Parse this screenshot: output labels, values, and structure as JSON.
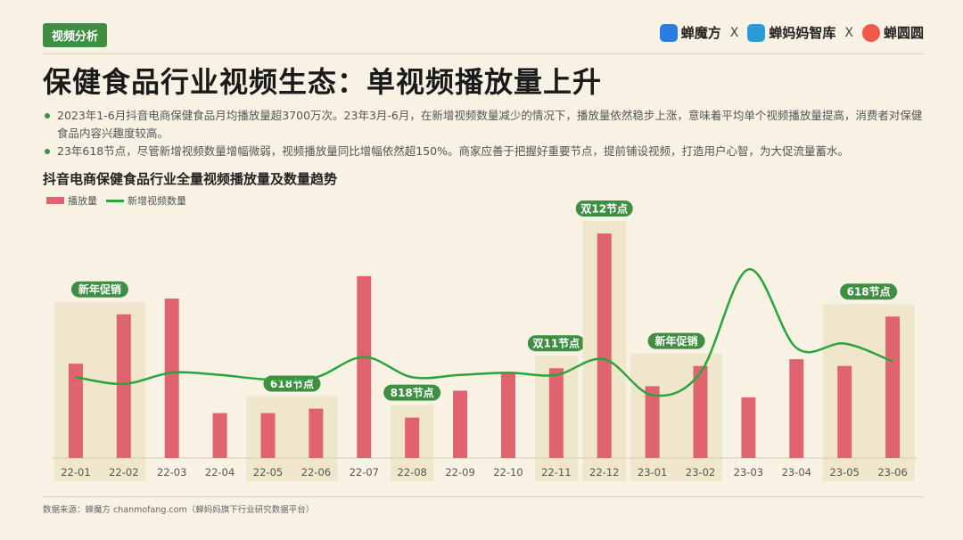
{
  "header": {
    "tag": "视频分析",
    "logos": [
      {
        "name": "蝉魔方",
        "color": "#2a7de1"
      },
      {
        "name": "蝉妈妈智库",
        "color": "#2a9bd9"
      },
      {
        "name": "蝉圆圆",
        "color": "#f0584a"
      }
    ],
    "separator": "X",
    "title": "保健食品行业视频生态：单视频播放量上升"
  },
  "bullets": [
    "2023年1-6月抖音电商保健食品月均播放量超3700万次。23年3月-6月，在新增视频数量减少的情况下，播放量依然稳步上涨，意味着平均单个视频播放量提高，消费者对保健食品内容兴趣度较高。",
    "23年618节点，尽管新增视频数量增幅微弱，视频播放量同比增幅依然超150%。商家应善于把握好重要节点，提前铺设视频，打造用户心智，为大促流量蓄水。"
  ],
  "chart_data": {
    "type": "bar",
    "title": "抖音电商保健食品行业全量视频播放量及数量趋势",
    "categories": [
      "22-01",
      "22-02",
      "22-03",
      "22-04",
      "22-05",
      "22-06",
      "22-07",
      "22-08",
      "22-09",
      "22-10",
      "22-11",
      "22-12",
      "23-01",
      "23-02",
      "23-03",
      "23-04",
      "23-05",
      "23-06"
    ],
    "series": [
      {
        "name": "播放量",
        "kind": "bar",
        "color": "#e06470",
        "values": [
          42,
          64,
          71,
          20,
          20,
          22,
          81,
          18,
          30,
          38,
          40,
          100,
          32,
          41,
          27,
          44,
          41,
          63
        ]
      },
      {
        "name": "新增视频数量",
        "kind": "line",
        "color": "#2aa43d",
        "values": [
          36,
          33,
          38,
          37,
          35,
          36,
          45,
          36,
          37,
          38,
          37,
          44,
          28,
          38,
          84,
          49,
          51,
          43
        ]
      }
    ],
    "ylim": [
      0,
      100
    ],
    "grid": false,
    "legend": "top-left",
    "annotations": [
      {
        "label": "新年促销",
        "from": "22-01",
        "to": "22-02"
      },
      {
        "label": "618节点",
        "from": "22-05",
        "to": "22-06"
      },
      {
        "label": "818节点",
        "from": "22-08",
        "to": "22-08"
      },
      {
        "label": "双11节点",
        "from": "22-11",
        "to": "22-11"
      },
      {
        "label": "双12节点",
        "from": "22-12",
        "to": "22-12"
      },
      {
        "label": "新年促销",
        "from": "23-01",
        "to": "23-02"
      },
      {
        "label": "618节点",
        "from": "23-05",
        "to": "23-06"
      }
    ],
    "colors": {
      "highlight": "#efe6cc",
      "pill": "#3e8f42"
    }
  },
  "source": "数据来源：蝉魔方 chanmofang.com（蝉妈妈旗下行业研究数据平台）"
}
